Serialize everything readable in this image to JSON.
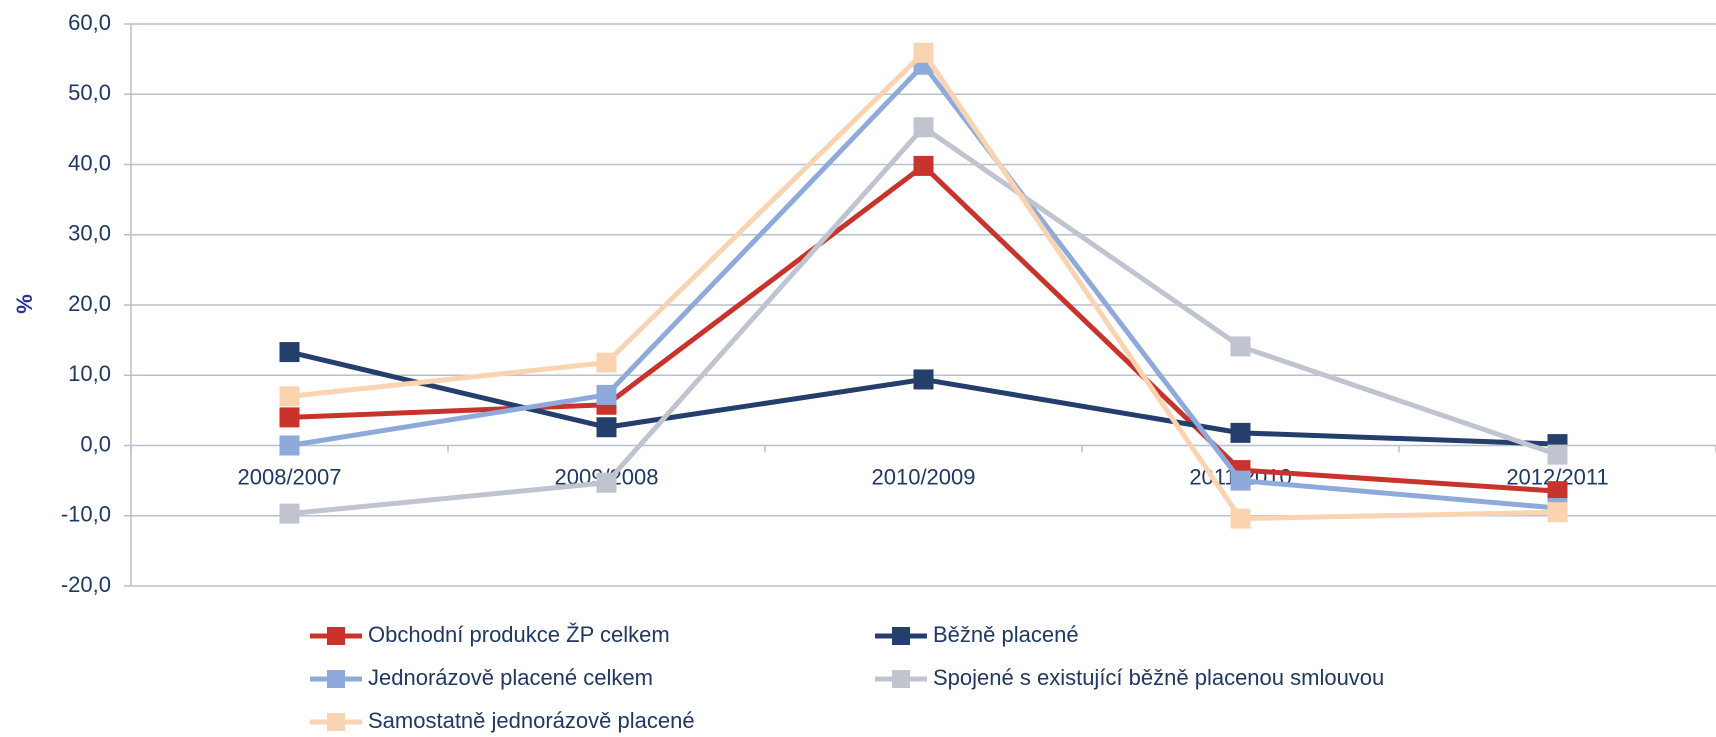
{
  "chart_data": {
    "type": "line",
    "y_label": "%",
    "categories": [
      "2008/2007",
      "2009/2008",
      "2010/2009",
      "2011/2010",
      "2012/2011"
    ],
    "series": [
      {
        "name": "Obchodní produkce ŽP celkem",
        "color": "#c8332b",
        "values": [
          4.0,
          5.8,
          39.8,
          -3.5,
          -6.5
        ]
      },
      {
        "name": "Běžně placené",
        "color": "#243f6b",
        "values": [
          13.3,
          2.6,
          9.4,
          1.8,
          0.2
        ]
      },
      {
        "name": "Jednorázově placené celkem",
        "color": "#8eaadb",
        "values": [
          0.0,
          7.2,
          54.2,
          -5.0,
          -8.9
        ]
      },
      {
        "name": "Spojené s existující běžně placenou smlouvou",
        "color": "#bfc4cf",
        "values": [
          -9.7,
          -5.3,
          45.3,
          14.1,
          -1.3
        ]
      },
      {
        "name": "Samostatně jednorázově placené",
        "color": "#fad3b0",
        "values": [
          7.0,
          11.8,
          55.9,
          -10.4,
          -9.5
        ]
      }
    ],
    "ylim": [
      -20,
      60
    ],
    "yticks": [
      {
        "value": -20,
        "label": "-20,0"
      },
      {
        "value": -10,
        "label": "-10,0"
      },
      {
        "value": 0,
        "label": "0,0"
      },
      {
        "value": 10,
        "label": "10,0"
      },
      {
        "value": 20,
        "label": "20,0"
      },
      {
        "value": 30,
        "label": "30,0"
      },
      {
        "value": 40,
        "label": "40,0"
      },
      {
        "value": 50,
        "label": "50,0"
      },
      {
        "value": 60,
        "label": "60,0"
      }
    ],
    "grid": true
  }
}
